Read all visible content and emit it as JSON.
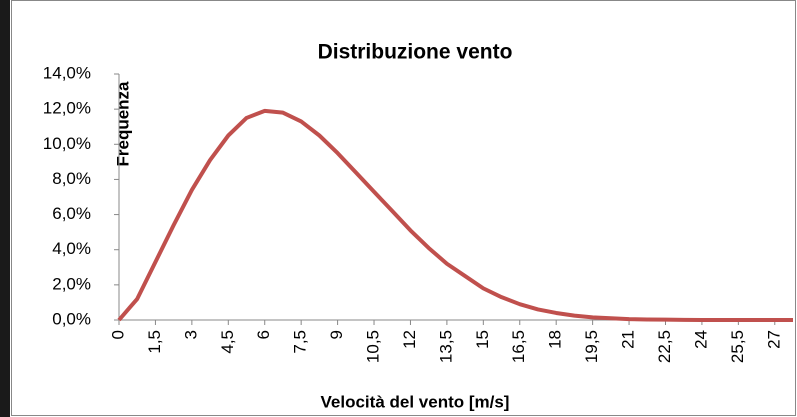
{
  "chart_data": {
    "type": "line",
    "title": "Distribuzione vento",
    "xlabel": "Velocità del vento [m/s]",
    "ylabel": "Frequenza",
    "x": [
      0,
      0.75,
      1.5,
      2.25,
      3,
      3.75,
      4.5,
      5.25,
      6,
      6.75,
      7.5,
      8.25,
      9,
      9.75,
      10.5,
      11.25,
      12,
      12.75,
      13.5,
      14.25,
      15,
      15.75,
      16.5,
      17.25,
      18,
      18.75,
      19.5,
      20.25,
      21,
      21.75,
      22.5,
      23.25,
      24,
      24.75,
      25.5,
      26.25,
      27,
      27.75
    ],
    "series": [
      {
        "name": "Frequenza",
        "color": "#c0504d",
        "values": [
          0,
          1.2,
          3.3,
          5.4,
          7.4,
          9.1,
          10.5,
          11.5,
          11.9,
          11.8,
          11.3,
          10.5,
          9.5,
          8.4,
          7.3,
          6.2,
          5.1,
          4.1,
          3.2,
          2.5,
          1.8,
          1.3,
          0.9,
          0.6,
          0.4,
          0.25,
          0.15,
          0.1,
          0.05,
          0.03,
          0.02,
          0.01,
          0,
          0,
          0,
          0,
          0,
          0
        ]
      }
    ],
    "xlim": [
      0,
      27.75
    ],
    "xticks": [
      0,
      {
        "value": 1.5,
        "label": "1,5"
      },
      3,
      {
        "value": 4.5,
        "label": "4,5"
      },
      6,
      {
        "value": 7.5,
        "label": "7,5"
      },
      9,
      {
        "value": 10.5,
        "label": "10,5"
      },
      12,
      {
        "value": 13.5,
        "label": "13,5"
      },
      15,
      {
        "value": 16.5,
        "label": "16,5"
      },
      18,
      {
        "value": 19.5,
        "label": "19,5"
      },
      21,
      {
        "value": 22.5,
        "label": "22,5"
      },
      24,
      {
        "value": 25.5,
        "label": "25,5"
      },
      27
    ],
    "ylim": [
      0,
      14
    ],
    "yticks": [
      {
        "value": 0,
        "label": "0,0%"
      },
      {
        "value": 2,
        "label": "2,0%"
      },
      {
        "value": 4,
        "label": "4,0%"
      },
      {
        "value": 6,
        "label": "6,0%"
      },
      {
        "value": 8,
        "label": "8,0%"
      },
      {
        "value": 10,
        "label": "10,0%"
      },
      {
        "value": 12,
        "label": "12,0%"
      },
      {
        "value": 14,
        "label": "14,0%"
      }
    ],
    "grid": false
  }
}
